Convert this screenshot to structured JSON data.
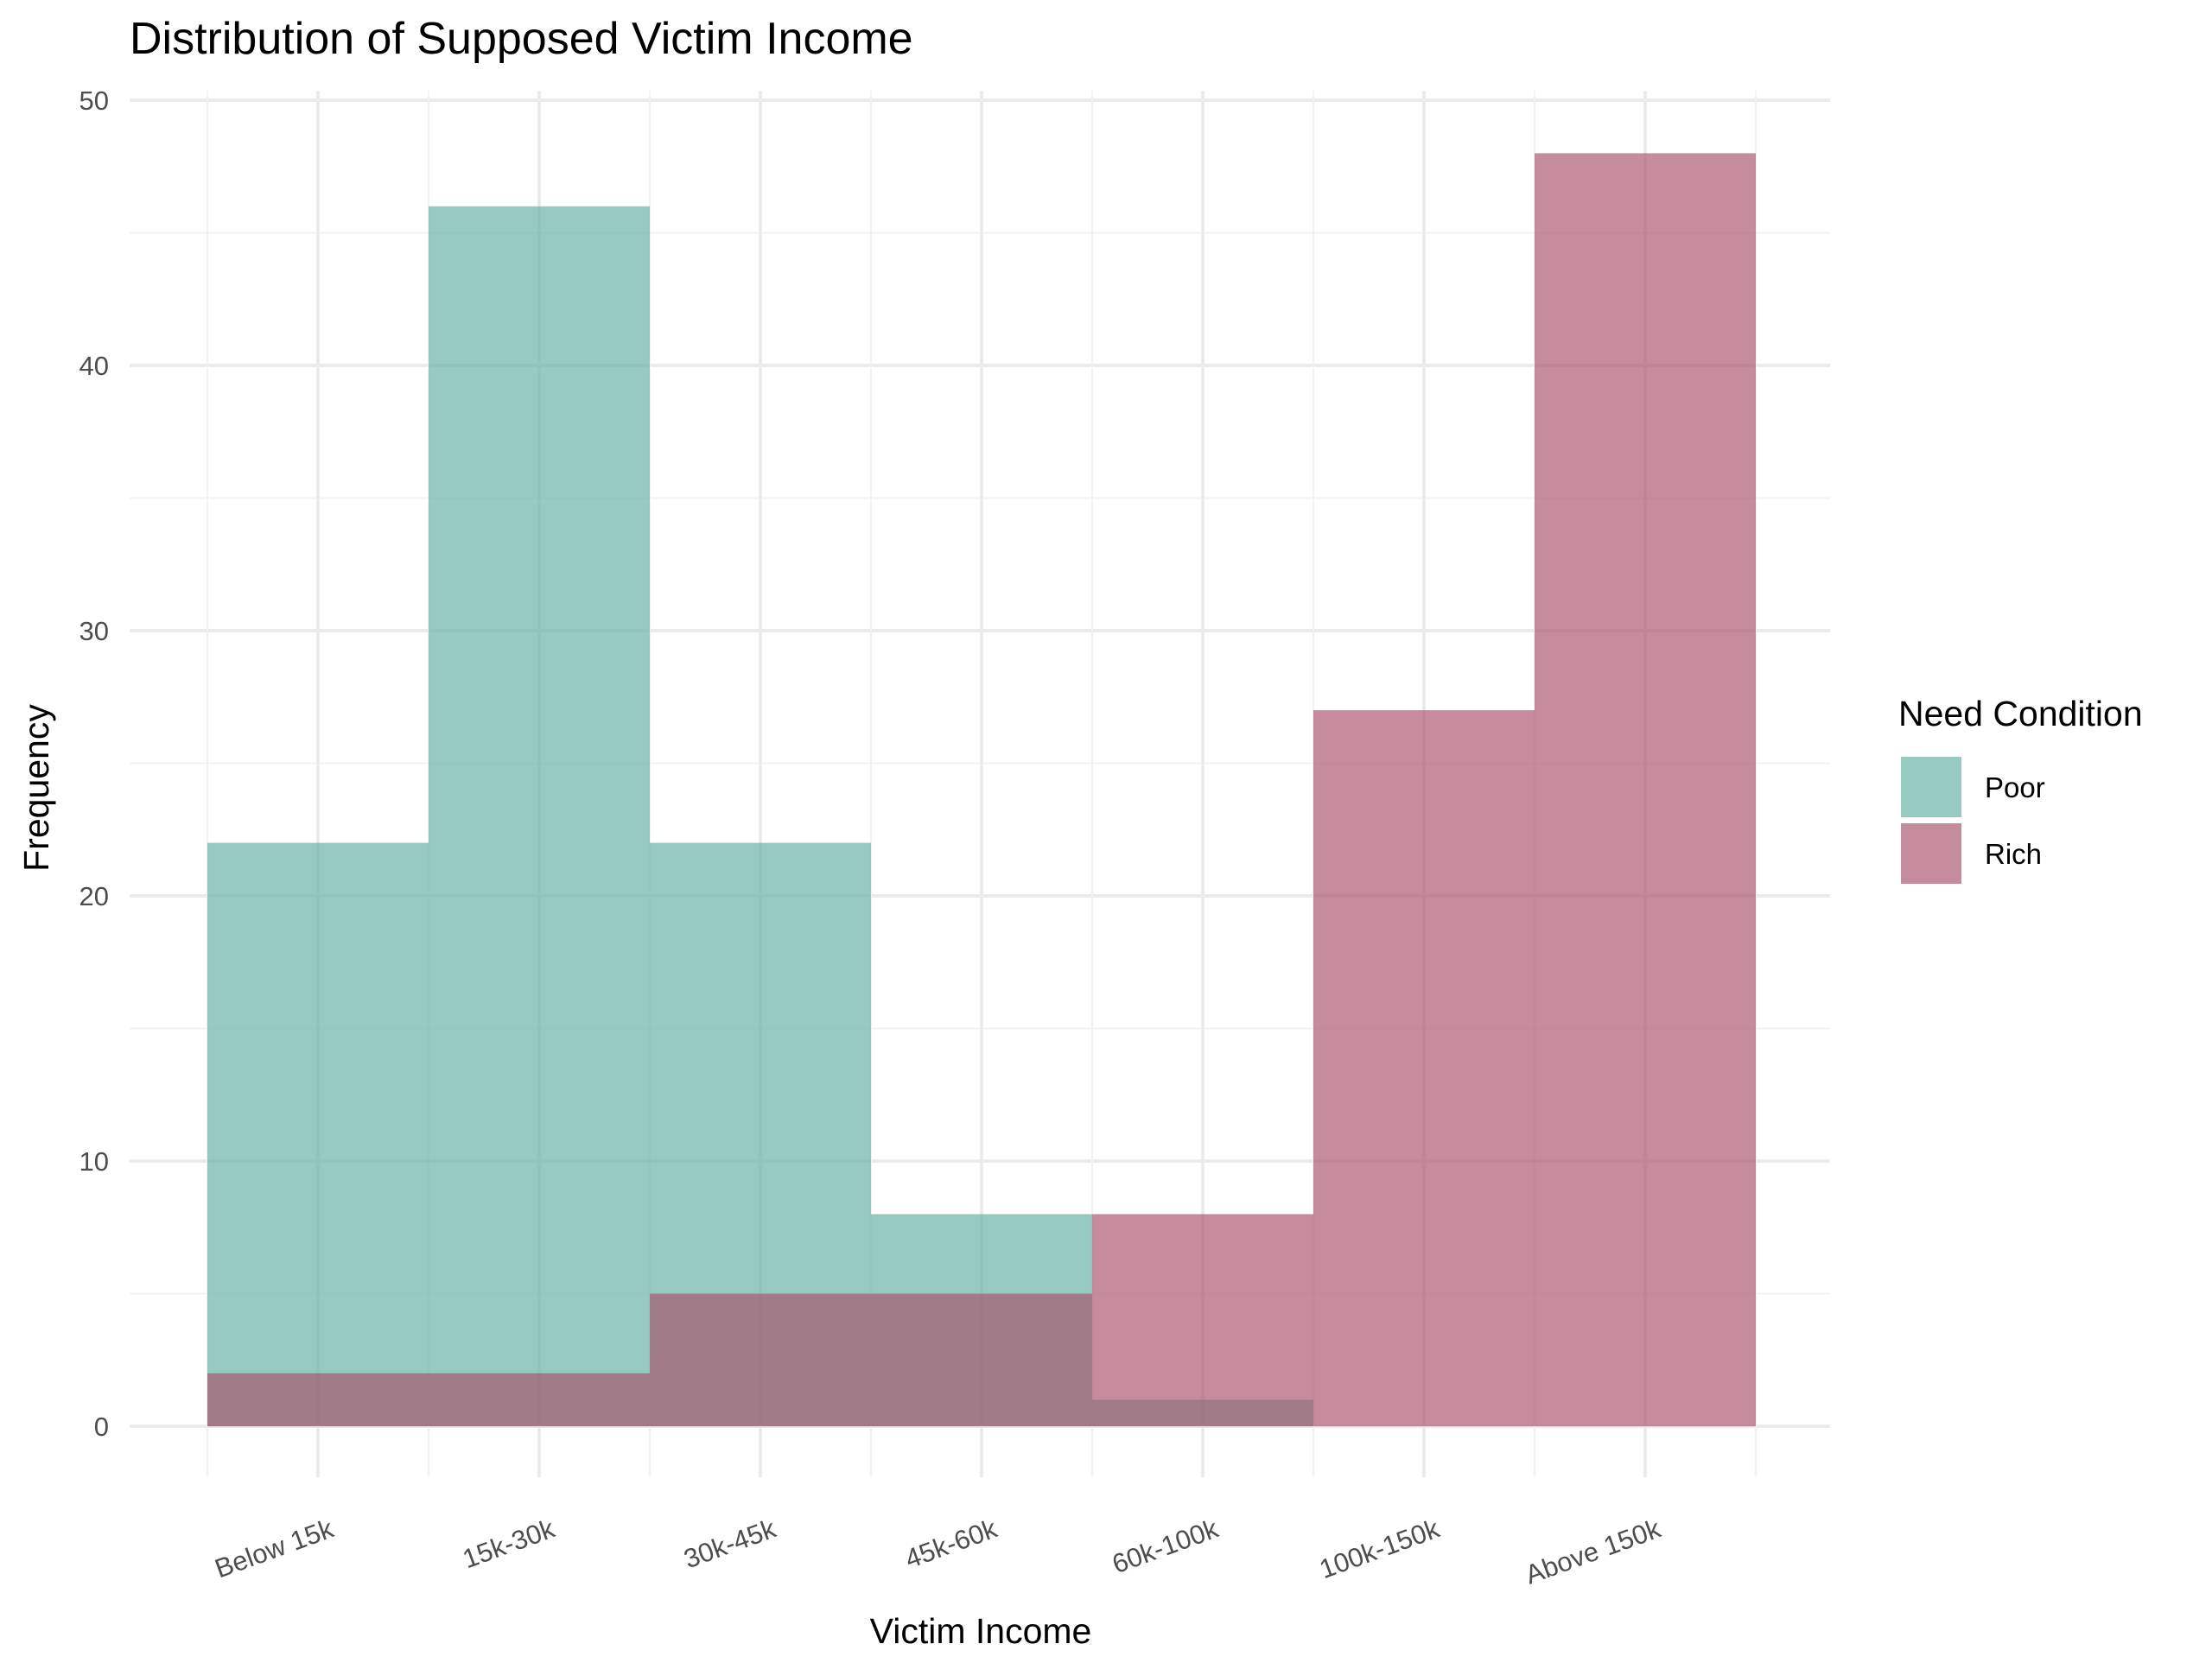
{
  "chart_data": {
    "type": "bar",
    "title": "Distribution of Supposed Victim Income",
    "xlabel": "Victim Income",
    "ylabel": "Frequency",
    "categories": [
      "Below 15k",
      "15k-30k",
      "30k-45k",
      "45k-60k",
      "60k-100k",
      "100k-150k",
      "Above 150k"
    ],
    "series": [
      {
        "name": "Poor",
        "values": [
          22,
          46,
          22,
          8,
          1,
          0,
          0
        ],
        "color": "#66b2a3"
      },
      {
        "name": "Rich",
        "values": [
          2,
          2,
          5,
          5,
          8,
          27,
          48
        ],
        "color": "#a8566d"
      }
    ],
    "ylim": [
      0,
      50
    ],
    "yticks": [
      0,
      10,
      20,
      30,
      40,
      50
    ],
    "overlay": "overlapping semi-transparent histogram bars",
    "grid": true,
    "legend": {
      "title": "Need Condition",
      "position": "right"
    }
  }
}
